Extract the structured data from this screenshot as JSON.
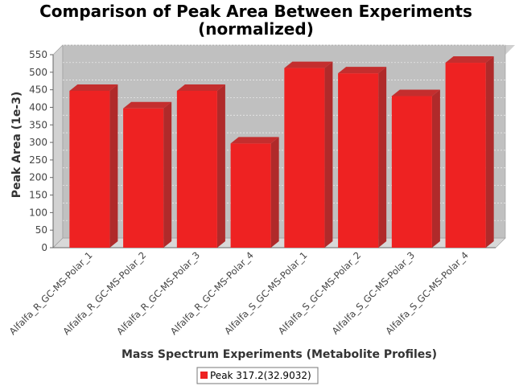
{
  "chart_data": {
    "type": "bar",
    "title_line1": "Comparison of Peak Area Between Experiments",
    "title_line2": "(normalized)",
    "xlabel": "Mass Spectrum Experiments (Metabolite Profiles)",
    "ylabel": "Peak Area (1e-3)",
    "ylim": [
      0,
      550
    ],
    "yticks": [
      "0",
      "50",
      "100",
      "150",
      "200",
      "250",
      "300",
      "350",
      "400",
      "450",
      "500",
      "550"
    ],
    "grid": true,
    "legend_position": "bottom",
    "categories": [
      "Alfalfa_R_GC-MS-Polar_1",
      "Alfalfa_R_GC-MS-Polar_2",
      "Alfalfa_R_GC-MS-Polar_3",
      "Alfalfa_R_GC-MS-Polar_4",
      "Alfalfa_S_GC-MS-Polar_1",
      "Alfalfa_S_GC-MS-Polar_2",
      "Alfalfa_S_GC-MS-Polar_3",
      "Alfalfa_S_GC-MS-Polar_4"
    ],
    "series": [
      {
        "name": "Peak 317.2(32.9032)",
        "color": "#ee2222",
        "values": [
          447,
          397,
          447,
          297,
          512,
          497,
          432,
          527
        ]
      }
    ]
  }
}
